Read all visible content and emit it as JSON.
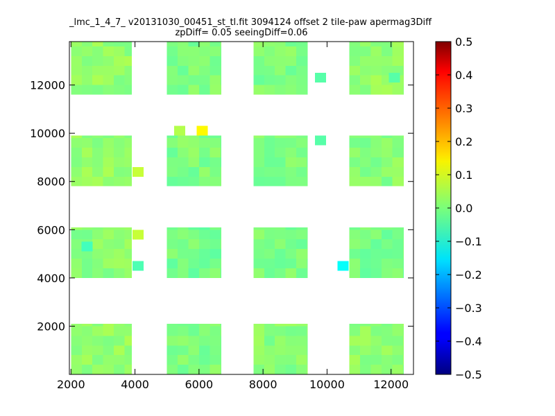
{
  "chart_data": {
    "type": "heatmap",
    "title_lines": [
      "_lmc_1_4_7_ v20131030_00451_st_tl.fit 3094124 offset 2 tile-paw apermag3Diff",
      "zpDiff= 0.05 seeingDiff=0.06"
    ],
    "xlim": [
      1950,
      12700
    ],
    "ylim": [
      0,
      13800
    ],
    "x_ticks": [
      2000,
      4000,
      6000,
      8000,
      10000,
      12000
    ],
    "y_ticks": [
      2000,
      4000,
      6000,
      8000,
      10000,
      12000
    ],
    "x_tick_labels": [
      "2000",
      "4000",
      "6000",
      "8000",
      "10000",
      "12000"
    ],
    "y_tick_labels": [
      "2000",
      "4000",
      "6000",
      "8000",
      "10000",
      "12000"
    ],
    "colorbar": {
      "vmin": -0.5,
      "vmax": 0.5,
      "colormap": "jet",
      "ticks": [
        0.5,
        0.4,
        0.3,
        0.2,
        0.1,
        0.0,
        -0.1,
        -0.2,
        -0.3,
        -0.4,
        -0.5
      ],
      "tick_labels": [
        "0.5",
        "0.4",
        "0.3",
        "0.2",
        "0.1",
        "0.0",
        "−0.1",
        "−0.2",
        "−0.3",
        "−0.4",
        "−0.5"
      ]
    },
    "cell_size": [
      335,
      400
    ],
    "tiles": [
      {
        "x0": 2000,
        "x1": 3900,
        "y0": 0,
        "y1": 2100,
        "value": 0.02
      },
      {
        "x0": 5000,
        "x1": 6700,
        "y0": 0,
        "y1": 2100,
        "value": 0.0
      },
      {
        "x0": 7700,
        "x1": 9400,
        "y0": 0,
        "y1": 2100,
        "value": 0.01
      },
      {
        "x0": 10700,
        "x1": 12400,
        "y0": 0,
        "y1": 2100,
        "value": 0.02
      },
      {
        "x0": 2000,
        "x1": 3900,
        "y0": 4000,
        "y1": 6100,
        "value": 0.01
      },
      {
        "x0": 5000,
        "x1": 6700,
        "y0": 4000,
        "y1": 6100,
        "value": -0.01
      },
      {
        "x0": 7700,
        "x1": 9400,
        "y0": 4000,
        "y1": 6100,
        "value": 0.0
      },
      {
        "x0": 10700,
        "x1": 12400,
        "y0": 4000,
        "y1": 6100,
        "value": -0.01
      },
      {
        "x0": 2000,
        "x1": 3900,
        "y0": 7800,
        "y1": 9900,
        "value": 0.02
      },
      {
        "x0": 5000,
        "x1": 6700,
        "y0": 7800,
        "y1": 9900,
        "value": 0.0
      },
      {
        "x0": 7700,
        "x1": 9400,
        "y0": 7800,
        "y1": 9900,
        "value": 0.0
      },
      {
        "x0": 10700,
        "x1": 12400,
        "y0": 7800,
        "y1": 9900,
        "value": 0.01
      },
      {
        "x0": 2000,
        "x1": 3900,
        "y0": 11600,
        "y1": 13800,
        "value": 0.02
      },
      {
        "x0": 5000,
        "x1": 6700,
        "y0": 11600,
        "y1": 13800,
        "value": 0.0
      },
      {
        "x0": 7700,
        "x1": 9400,
        "y0": 11600,
        "y1": 13800,
        "value": 0.0
      },
      {
        "x0": 10700,
        "x1": 12400,
        "y0": 11600,
        "y1": 13800,
        "value": 0.02
      }
    ],
    "points": [
      {
        "x": 5400,
        "y": 10100,
        "value": 0.05
      },
      {
        "x": 6100,
        "y": 10100,
        "value": 0.13
      },
      {
        "x": 4100,
        "y": 5800,
        "value": 0.07
      },
      {
        "x": 10500,
        "y": 4500,
        "value": -0.12
      },
      {
        "x": 2500,
        "y": 5300,
        "value": -0.06
      },
      {
        "x": 4100,
        "y": 4500,
        "value": -0.05
      },
      {
        "x": 4100,
        "y": 8400,
        "value": 0.07
      },
      {
        "x": 9800,
        "y": 9700,
        "value": -0.04
      },
      {
        "x": 9800,
        "y": 12300,
        "value": -0.04
      },
      {
        "x": 12100,
        "y": 12300,
        "value": -0.04
      }
    ]
  }
}
